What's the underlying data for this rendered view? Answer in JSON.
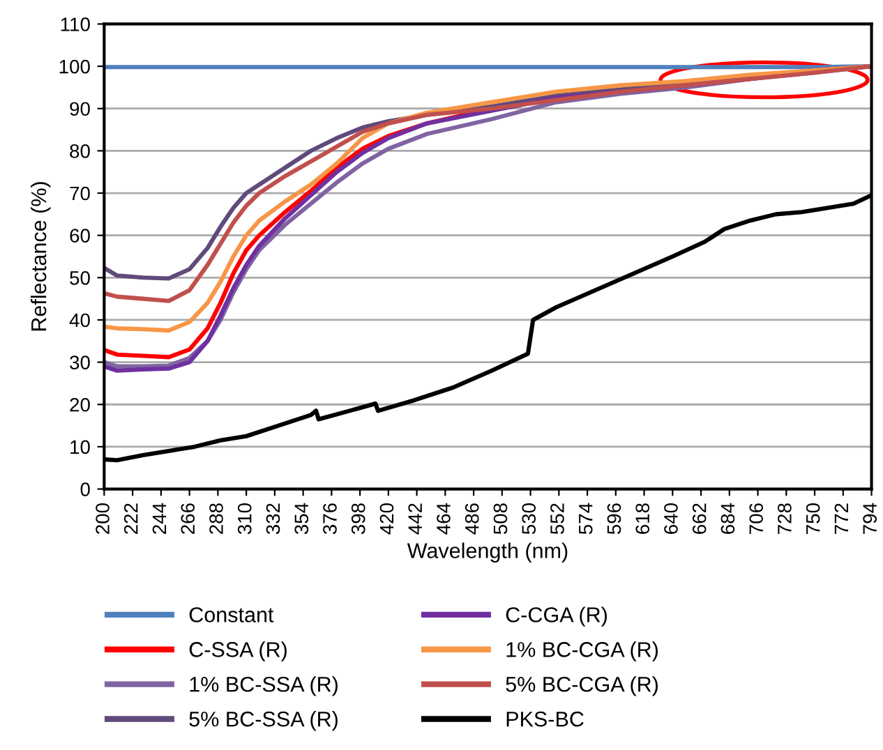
{
  "chart_data": {
    "type": "line",
    "xlabel": "Wavelength (nm)",
    "ylabel": "Reflectance (%)",
    "x": [
      200,
      210,
      230,
      250,
      266,
      280,
      290,
      300,
      310,
      320,
      340,
      360,
      380,
      400,
      420,
      450,
      500,
      550,
      600,
      650,
      700,
      750,
      794
    ],
    "series": [
      {
        "name": "Constant",
        "color": "#4f81bd",
        "values": [
          99.8,
          99.8,
          99.8,
          99.8,
          99.8,
          99.8,
          99.8,
          99.8,
          99.8,
          99.8,
          99.8,
          99.8,
          99.8,
          99.8,
          99.8,
          99.8,
          99.8,
          99.8,
          99.8,
          99.8,
          99.8,
          99.8,
          100
        ]
      },
      {
        "name": "C-SSA (R)",
        "color": "#ff0000",
        "values": [
          32.9,
          31.8,
          31.5,
          31.2,
          33,
          38,
          44,
          51,
          56.5,
          60,
          65.5,
          70.5,
          76,
          80.5,
          83.5,
          86.5,
          90,
          93,
          94.5,
          96,
          97.5,
          99,
          100
        ]
      },
      {
        "name": "1% BC-SSA (R)",
        "color": "#8064a2",
        "values": [
          30,
          29,
          29,
          29.2,
          31,
          35,
          40,
          46.5,
          52,
          56.5,
          62.5,
          67.5,
          72.5,
          77,
          80.5,
          84,
          87.5,
          91.5,
          93.5,
          95,
          97,
          98.5,
          100
        ]
      },
      {
        "name": "5% BC-SSA (R)",
        "color": "#604a7b",
        "values": [
          52.3,
          50.5,
          50,
          49.8,
          52,
          57,
          62,
          66.5,
          70,
          72,
          76,
          80,
          83,
          85.5,
          87,
          88.5,
          90.5,
          93,
          94.5,
          96,
          97.5,
          99,
          100
        ]
      },
      {
        "name": "C-CGA (R)",
        "color": "#7030a0",
        "values": [
          29,
          28,
          28.3,
          28.5,
          30,
          35,
          41,
          47.5,
          53,
          57.5,
          64,
          69.5,
          75,
          79.5,
          83,
          86.5,
          89.5,
          92.5,
          94,
          95.5,
          97,
          99,
          100
        ]
      },
      {
        "name": "1% BC-CGA (R)",
        "color": "#f79646",
        "values": [
          38.4,
          38,
          37.8,
          37.5,
          39.5,
          44,
          49,
          55,
          60,
          63.5,
          68,
          72,
          77,
          83,
          86.5,
          89,
          91.5,
          94,
          95.5,
          96.5,
          98,
          99,
          100
        ]
      },
      {
        "name": "5% BC-CGA (R)",
        "color": "#c0504d",
        "values": [
          46.3,
          45.5,
          45,
          44.5,
          47,
          53,
          58,
          63,
          67,
          70,
          74,
          77.5,
          81,
          84.5,
          86.5,
          88.5,
          90,
          92,
          94,
          95.5,
          97,
          98.5,
          100
        ]
      },
      {
        "name": "PKS-BC",
        "color": "#000000",
        "x": [
          200,
          210,
          230,
          250,
          270,
          290,
          310,
          330,
          360,
          364,
          366,
          390,
          410,
          412,
          440,
          470,
          500,
          528,
          532,
          550,
          580,
          610,
          640,
          665,
          680,
          700,
          720,
          740,
          760,
          780,
          794
        ],
        "values": [
          7,
          6.8,
          8,
          9,
          10,
          11.5,
          12.5,
          14.5,
          17.5,
          18.5,
          16.5,
          18.5,
          20.2,
          18.5,
          21,
          24,
          28,
          32,
          40,
          43,
          47,
          51,
          55,
          58.5,
          61.5,
          63.5,
          65,
          65.5,
          66.5,
          67.5,
          69.5
        ]
      }
    ],
    "xlim": [
      200,
      794
    ],
    "xticks": [
      200,
      222,
      244,
      266,
      288,
      310,
      332,
      354,
      376,
      398,
      420,
      442,
      464,
      486,
      508,
      530,
      552,
      574,
      596,
      618,
      640,
      662,
      684,
      706,
      728,
      750,
      772,
      794
    ],
    "ylim": [
      0,
      110
    ],
    "yticks": [
      0,
      10,
      20,
      30,
      40,
      50,
      60,
      70,
      80,
      90,
      100,
      110
    ],
    "grid": "y",
    "legend": "bottom",
    "line_style": "solid",
    "marker": "none"
  }
}
